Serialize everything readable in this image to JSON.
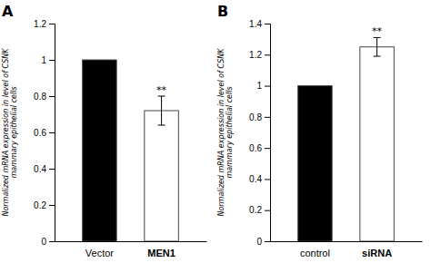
{
  "chart_data": [
    {
      "type": "bar",
      "title": "A",
      "ylabel": "Normalized mRNA expression in level of CSNK\nmammary epithelial cells",
      "categories": [
        "Vector",
        "MEN1"
      ],
      "values": [
        1.0,
        0.72
      ],
      "errors": [
        0.0,
        0.08
      ],
      "colors": [
        "black",
        "white"
      ],
      "ylim": [
        0,
        1.2
      ],
      "yticks": [
        0,
        0.2,
        0.4,
        0.6,
        0.8,
        1,
        1.2
      ],
      "annotations": [
        {
          "text": "**",
          "category": "MEN1"
        }
      ]
    },
    {
      "type": "bar",
      "title": "B",
      "ylabel": "Normalized mRNA expression in level of CSNK\nmammary epithelial cells",
      "categories": [
        "control",
        "siRNA"
      ],
      "values": [
        1.0,
        1.25
      ],
      "errors": [
        0.0,
        0.06
      ],
      "colors": [
        "black",
        "white"
      ],
      "ylim": [
        0,
        1.4
      ],
      "yticks": [
        0,
        0.2,
        0.4,
        0.6,
        0.8,
        1,
        1.2,
        1.4
      ],
      "annotations": [
        {
          "text": "**",
          "category": "siRNA"
        }
      ]
    }
  ]
}
